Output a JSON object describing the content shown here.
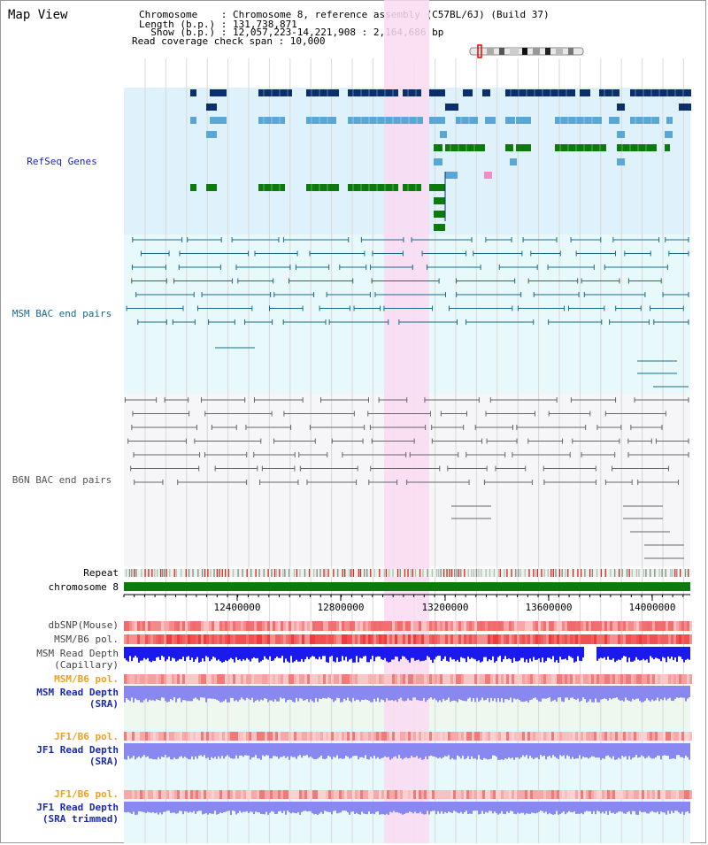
{
  "view_title": "Map View",
  "header": {
    "chromosome_line": "Chromosome    : Chromosome 8, reference assembly (C57BL/6J) (Build 37)",
    "length_line": "Length (b.p.) : 131,738,871",
    "show_line": "  Show (b.p.) : 12,057,223-14,221,908 : 2,164,686 bp",
    "coverage_line": "Read coverage check span : 10,000"
  },
  "tracks": {
    "refseq": "RefSeq Genes",
    "msm_bac": "MSM BAC end pairs",
    "b6n_bac": "B6N BAC end pairs",
    "repeat": "Repeat",
    "chromosome": "chromosome 8",
    "dbsnp": "dbSNP(Mouse)",
    "msm_b6_pol_1": "MSM/B6 pol.",
    "msm_depth_cap_1": "MSM Read Depth",
    "msm_depth_cap_2": "(Capillary)",
    "msm_b6_pol_2": "MSM/B6 pol.",
    "msm_depth_sra_1": "MSM Read Depth",
    "msm_depth_sra_2": "(SRA)",
    "jf1_b6_pol_1": "JF1/B6 pol.",
    "jf1_depth_sra_1": "JF1 Read Depth",
    "jf1_depth_sra_2": "(SRA)",
    "jf1_b6_pol_2": "JF1/B6 pol.",
    "jf1_depth_trim_1": "JF1 Read Depth",
    "jf1_depth_trim_2": "(SRA trimmed)"
  },
  "axis_ticks": [
    "12400000",
    "12800000",
    "13200000",
    "13600000",
    "14000000"
  ],
  "colors": {
    "refseq_bg": "#dff2fb",
    "msm_bg": "#e8f9fb",
    "b6n_bg": "#f6f6f8",
    "highlight": "#fadaf2",
    "gene_dark": "#0a2f6b",
    "gene_mid": "#3f8fb5",
    "gene_light": "#5aa6d4",
    "gene_green": "#0c7a0c",
    "msm_line": "#1a6a8a",
    "b6n_line": "#666666",
    "chromosome_bar": "#0d7a0d",
    "depth_blue": "#1a1aee",
    "depth_violet": "#8888f0",
    "label_blue": "#1a2ab0",
    "label_orange": "#f0a020",
    "label_teal": "#1a6a8a"
  }
}
